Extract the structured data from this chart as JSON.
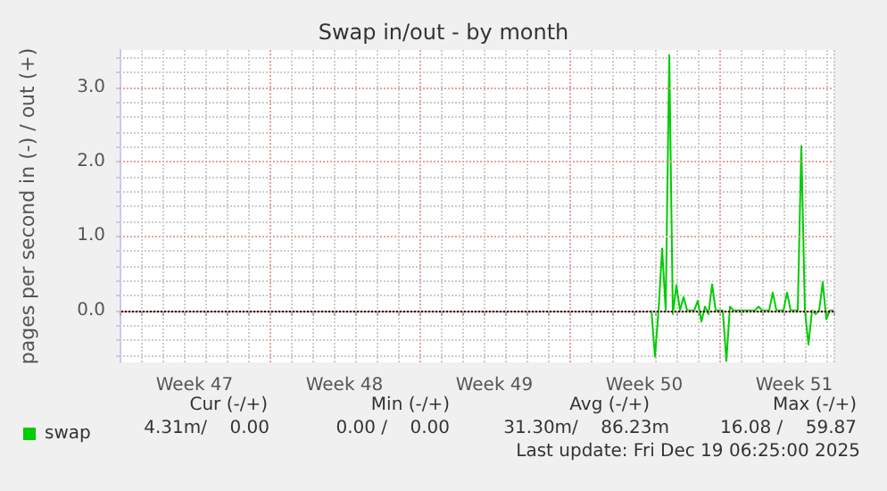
{
  "chart_data": {
    "type": "line",
    "title": "Swap in/out - by month",
    "ylabel": "pages per second in (-) / out (+)",
    "categories": [
      null,
      null,
      null,
      null,
      null,
      null,
      null,
      null,
      null,
      null,
      null,
      null,
      null,
      null,
      null,
      null,
      null,
      null,
      null,
      null,
      null,
      "Week 47",
      null,
      null,
      null,
      null,
      null,
      null,
      null,
      null,
      null,
      null,
      null,
      null,
      null,
      null,
      null,
      null,
      null,
      null,
      null,
      null,
      null,
      null,
      null,
      null,
      null,
      null,
      null,
      null,
      null,
      null,
      null,
      null,
      null,
      null,
      null,
      null,
      null,
      null,
      null,
      null,
      null,
      "Week 48",
      null,
      null,
      null,
      null,
      null,
      null,
      null,
      null,
      null,
      null,
      null,
      null,
      null,
      null,
      null,
      null,
      null,
      null,
      null,
      null,
      null,
      null,
      null,
      null,
      null,
      null,
      null,
      null,
      null,
      null,
      null,
      null,
      null,
      null,
      null,
      null,
      null,
      null,
      null,
      null,
      null,
      "Week 49",
      null,
      null,
      null,
      null,
      null,
      null,
      null,
      null,
      null,
      null,
      null,
      null,
      null,
      null,
      null,
      null,
      null,
      null,
      null,
      null,
      null,
      null,
      null,
      null,
      null,
      null,
      null,
      null,
      null,
      null,
      null,
      null,
      null,
      null,
      null,
      null,
      null,
      null,
      null,
      null,
      null,
      "Week 50",
      null,
      null,
      null,
      null,
      null,
      null,
      null,
      null,
      null,
      null,
      null,
      null,
      null,
      null,
      null,
      null,
      null,
      null,
      null,
      null,
      null,
      null,
      null,
      null,
      null,
      null,
      null,
      null,
      null,
      null,
      null,
      null,
      null,
      null,
      null,
      null,
      null,
      null,
      null,
      null,
      null,
      "Week 51",
      null,
      null,
      null,
      null,
      null,
      null,
      null,
      null,
      null,
      null,
      null
    ],
    "ylim": [
      -0.7,
      3.5
    ],
    "yticks": [
      {
        "value": 0,
        "label": "0.0"
      },
      {
        "value": 1,
        "label": "1.0"
      },
      {
        "value": 2,
        "label": "2.0"
      },
      {
        "value": 3,
        "label": "3.0"
      },
      {
        "value": -0.6,
        "label": null
      },
      {
        "value": -0.4,
        "label": null
      },
      {
        "value": -0.2,
        "label": null
      },
      {
        "value": 0.2,
        "label": null
      },
      {
        "value": 0.4,
        "label": null
      },
      {
        "value": 0.6,
        "label": null
      },
      {
        "value": 0.8,
        "label": null
      },
      {
        "value": 1.2,
        "label": null
      },
      {
        "value": 1.4,
        "label": null
      },
      {
        "value": 1.6,
        "label": null
      },
      {
        "value": 1.8,
        "label": null
      },
      {
        "value": 2.2,
        "label": null
      },
      {
        "value": 2.4,
        "label": null
      },
      {
        "value": 2.6,
        "label": null
      },
      {
        "value": 2.8,
        "label": null
      },
      {
        "value": 3.2,
        "label": null
      },
      {
        "value": 3.4,
        "label": null
      }
    ],
    "grid": true,
    "legend": "bottom left",
    "marker": "none",
    "line_style": "solid",
    "ref_lines": [
      {
        "axis": "y",
        "value": 0,
        "label": null,
        "color": "#000000",
        "line_style": "solid"
      }
    ],
    "series": [
      {
        "name": "swap",
        "color": "#00cc00",
        "values": [
          null,
          null,
          null,
          null,
          null,
          null,
          null,
          null,
          null,
          null,
          null,
          null,
          null,
          null,
          null,
          null,
          null,
          null,
          null,
          null,
          null,
          null,
          null,
          null,
          null,
          null,
          null,
          null,
          null,
          null,
          null,
          null,
          null,
          null,
          null,
          null,
          null,
          null,
          null,
          null,
          null,
          null,
          null,
          null,
          null,
          null,
          null,
          null,
          null,
          null,
          null,
          null,
          null,
          null,
          null,
          null,
          null,
          null,
          null,
          null,
          null,
          null,
          null,
          null,
          null,
          null,
          null,
          null,
          null,
          null,
          null,
          null,
          null,
          null,
          null,
          null,
          null,
          null,
          null,
          null,
          null,
          null,
          null,
          null,
          null,
          null,
          null,
          null,
          null,
          null,
          null,
          null,
          null,
          null,
          null,
          null,
          null,
          null,
          null,
          null,
          null,
          null,
          null,
          null,
          null,
          null,
          null,
          null,
          null,
          null,
          null,
          null,
          null,
          null,
          null,
          null,
          null,
          null,
          null,
          null,
          null,
          null,
          null,
          null,
          null,
          null,
          null,
          null,
          null,
          null,
          null,
          null,
          null,
          null,
          null,
          null,
          null,
          null,
          null,
          null,
          null,
          null,
          null,
          null,
          null,
          null,
          null,
          null,
          null,
          0,
          -0.62,
          0,
          0.83,
          0,
          3.43,
          -0.05,
          0.34,
          0,
          0.18,
          0,
          0,
          0,
          0.13,
          -0.15,
          0.05,
          -0.05,
          0.35,
          0,
          0,
          0,
          -0.68,
          0.05,
          0,
          0,
          0,
          0,
          0,
          0,
          0,
          0.05,
          0,
          0,
          0,
          0.24,
          0,
          0,
          0,
          0.24,
          0,
          0,
          0,
          2.21,
          0,
          -0.46,
          0,
          -0.05,
          0,
          0.38,
          -0.12,
          0,
          0
        ]
      }
    ],
    "annotations": [
      "Cur (-/+)",
      "Min (-/+)",
      "Avg (-/+)",
      "Max (-/+)",
      "4.31m/    0.00",
      "0.00 /    0.00",
      "31.30m/    86.23m",
      "16.08 /    59.87",
      "Last update: Fri Dec 19 06:25:00 2025"
    ]
  }
}
